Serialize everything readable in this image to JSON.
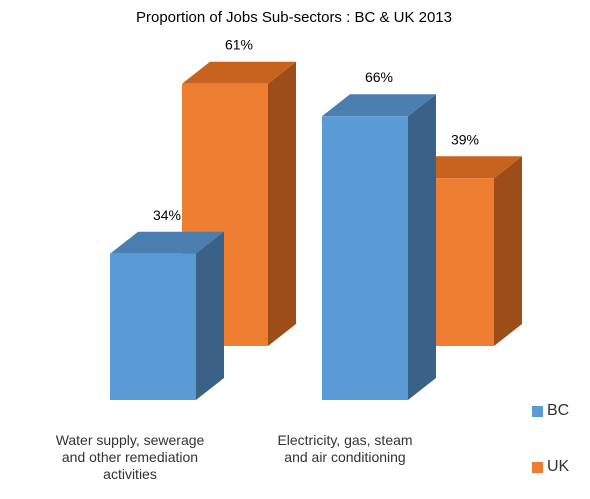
{
  "chart_data": {
    "type": "bar",
    "style": "3d-clustered-column",
    "title": "Proportion of Jobs Sub-sectors : BC & UK 2013",
    "categories": [
      [
        "Water supply, sewerage",
        "and other remediation",
        "activities"
      ],
      [
        "Electricity, gas, steam",
        "and air conditioning"
      ]
    ],
    "series": [
      {
        "name": "BC",
        "values": [
          34,
          66
        ],
        "labels": [
          "34%",
          "66%"
        ],
        "color": "#5b9bd5",
        "side_color": "#3a6287",
        "top_color": "#4a7fb0"
      },
      {
        "name": "UK",
        "values": [
          61,
          39
        ],
        "labels": [
          "61%",
          "39%"
        ],
        "color": "#ed7d31",
        "side_color": "#9c4d1a",
        "top_color": "#c8621f"
      }
    ],
    "value_unit": "%",
    "ylim": [
      0,
      100
    ],
    "grid": false,
    "legend_position": "right"
  }
}
